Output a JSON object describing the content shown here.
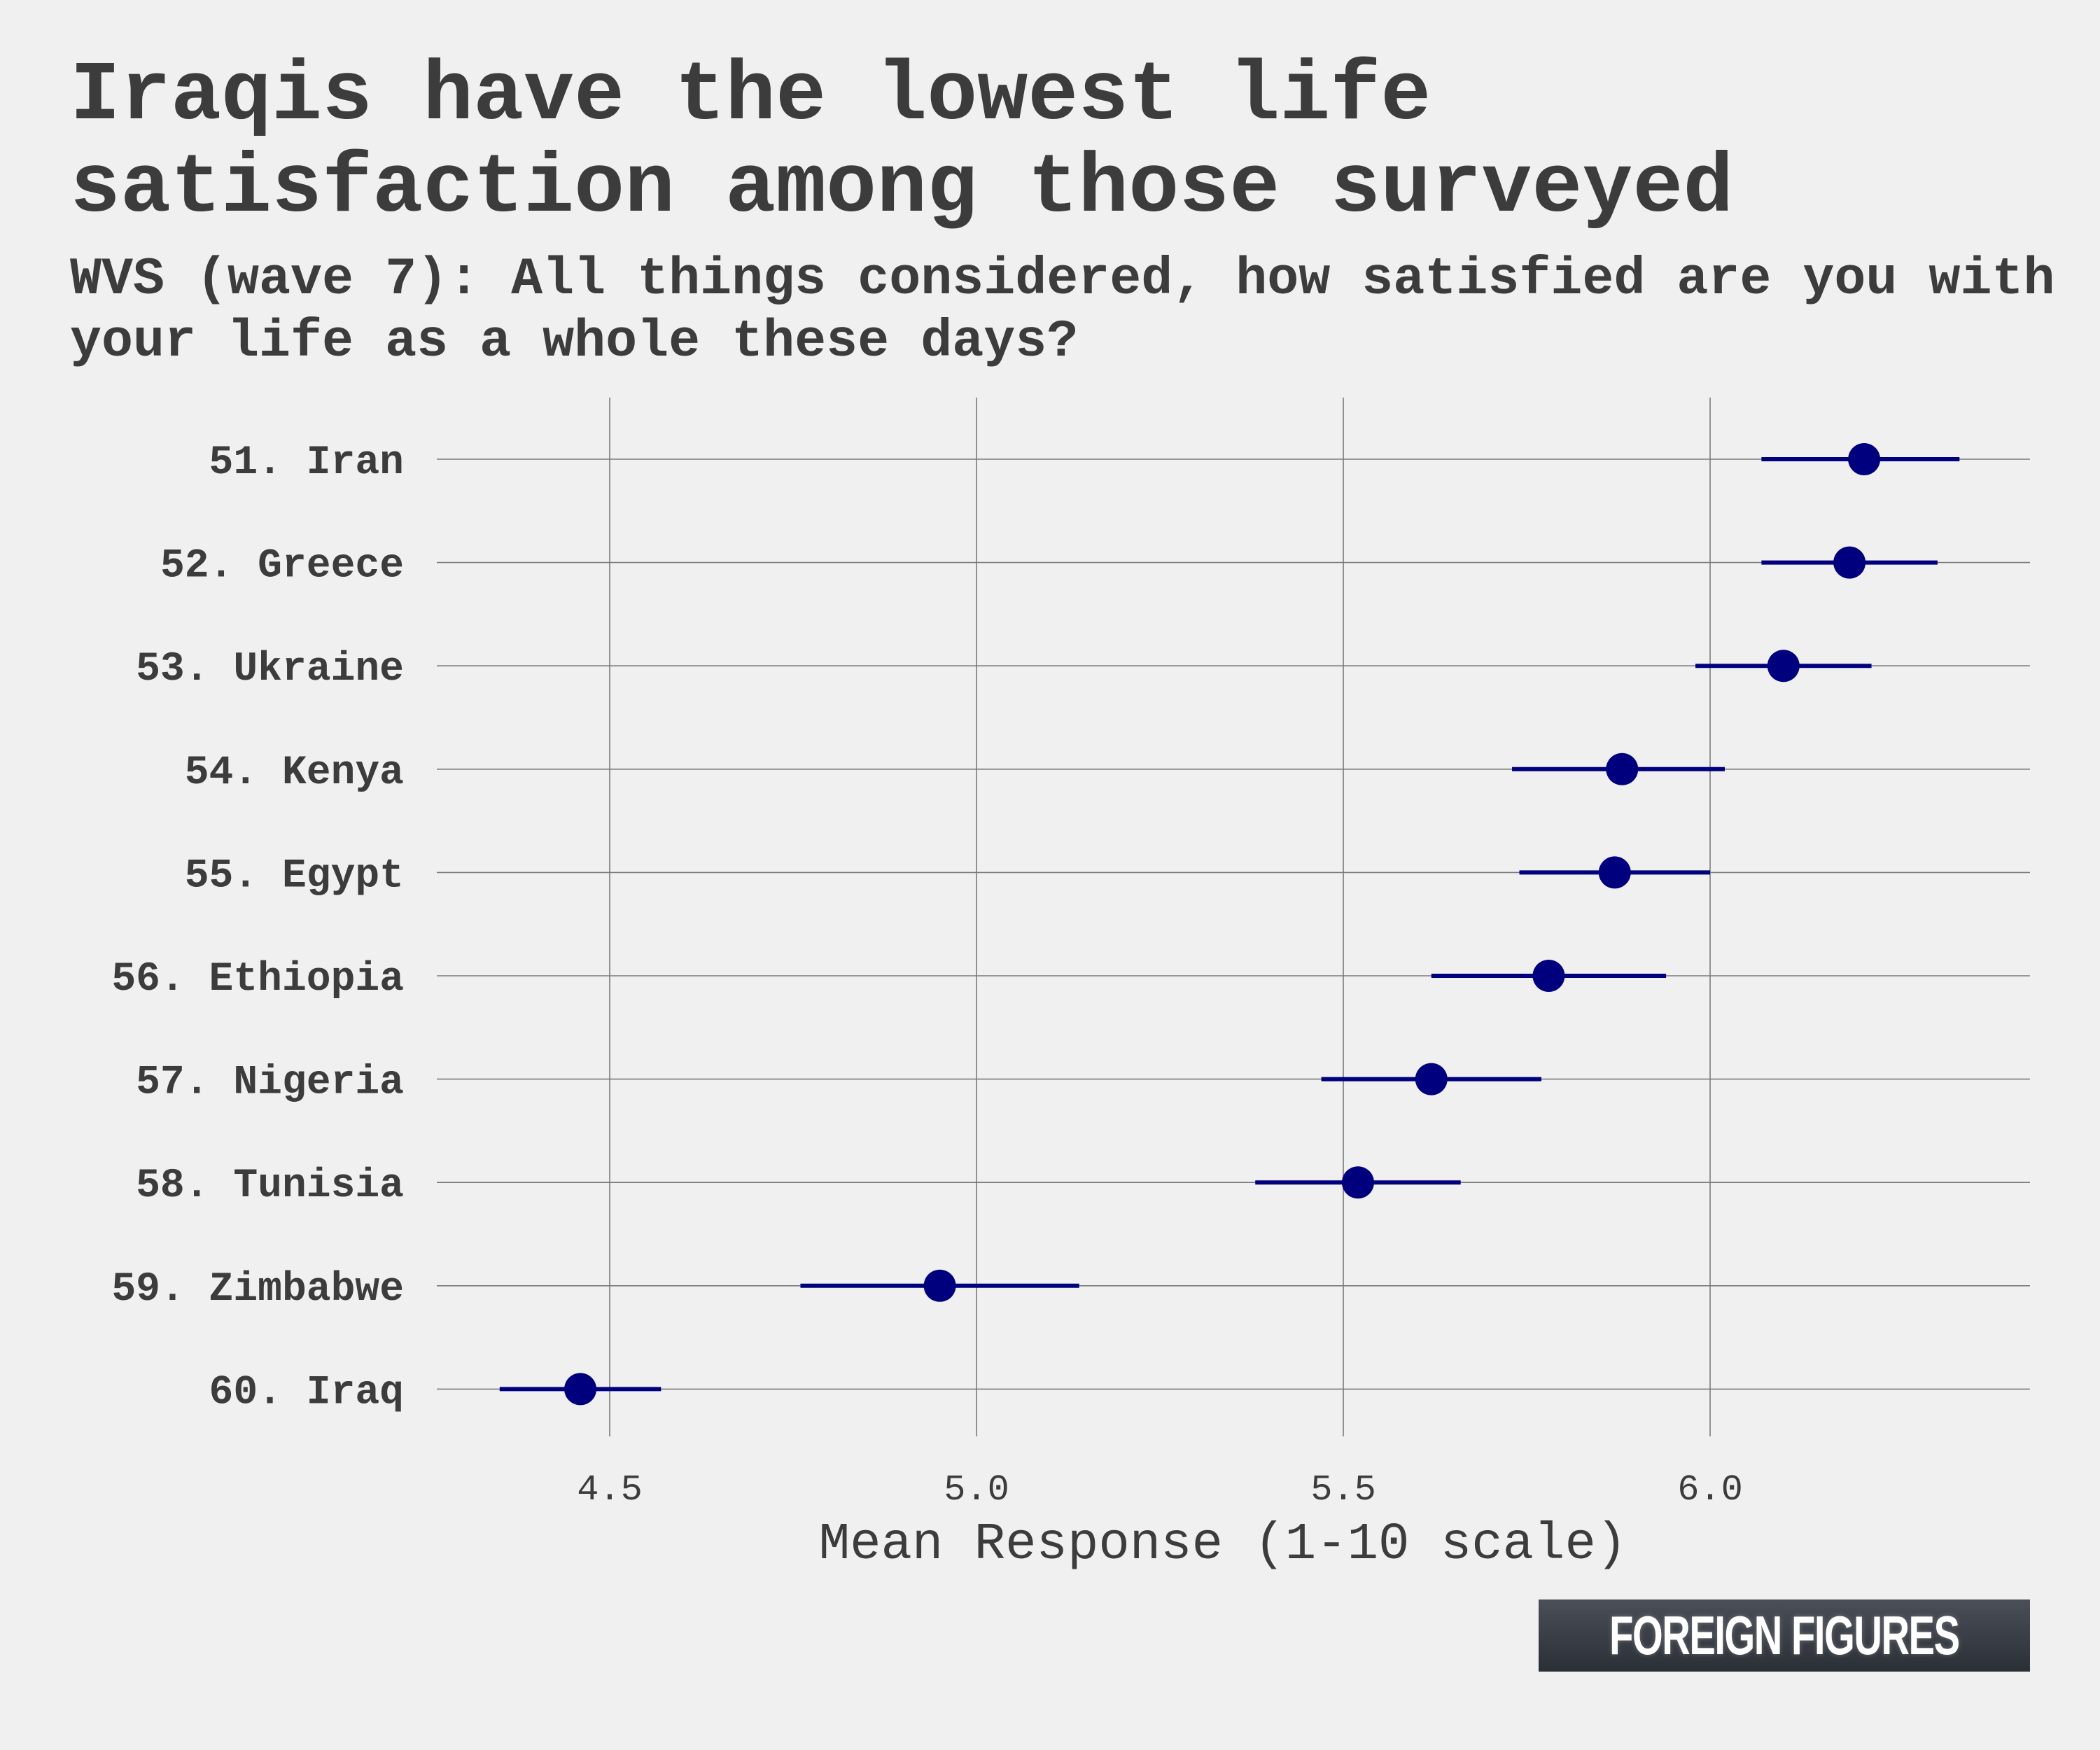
{
  "chart_data": {
    "type": "scatter",
    "title": "Iraqis have the lowest life satisfaction among those surveyed",
    "subtitle": "WVS (wave 7): All things considered, how satisfied are you with your life as a whole these days?",
    "xlabel": "Mean Response (1-10 scale)",
    "ylabel": "",
    "xlim": [
      4.24,
      6.44
    ],
    "xticks": [
      4.5,
      5.0,
      5.5,
      6.0
    ],
    "xtick_labels": [
      "4.5",
      "5.0",
      "5.5",
      "6.0"
    ],
    "grid": true,
    "categories": [
      "51. Iran",
      "52. Greece",
      "53. Ukraine",
      "54. Kenya",
      "55. Egypt",
      "56. Ethiopia",
      "57. Nigeria",
      "58. Tunisia",
      "59. Zimbabwe",
      "60. Iraq"
    ],
    "series": [
      {
        "name": "Mean response",
        "values": [
          6.21,
          6.19,
          6.1,
          5.88,
          5.87,
          5.78,
          5.62,
          5.52,
          4.95,
          4.46
        ],
        "ci_low": [
          6.07,
          6.07,
          5.98,
          5.73,
          5.74,
          5.62,
          5.47,
          5.38,
          4.76,
          4.35
        ],
        "ci_high": [
          6.34,
          6.31,
          6.22,
          6.02,
          6.0,
          5.94,
          5.77,
          5.66,
          5.14,
          4.57
        ]
      }
    ],
    "colors": {
      "point": "#00007f",
      "grid": "#7a7a7a",
      "text": "#3c3c3c",
      "background": "#f0f0f0"
    }
  },
  "branding": {
    "logo_text": "FOREIGN FIGURES"
  }
}
